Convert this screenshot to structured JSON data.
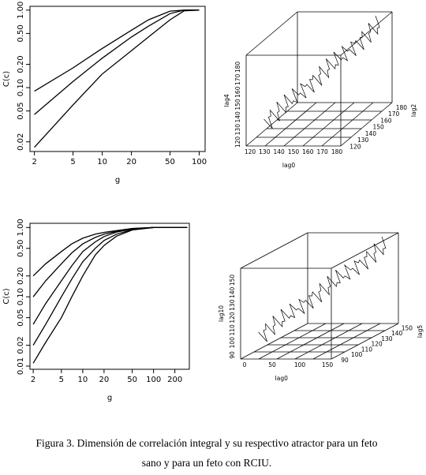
{
  "chart_data": [
    {
      "type": "line",
      "xlabel": "g",
      "ylabel": "C(c)",
      "xscale": "log",
      "yscale": "log",
      "xlim": [
        1.8,
        115
      ],
      "ylim": [
        0.015,
        1.12
      ],
      "xticks": [
        2,
        5,
        10,
        20,
        50,
        100
      ],
      "yticks": [
        0.02,
        0.05,
        {
          "value": 0.1,
          "label": "0.10"
        },
        {
          "value": 0.2,
          "label": "0.20"
        },
        {
          "value": 0.5,
          "label": "0.50"
        },
        {
          "value": 1,
          "label": "1.00"
        }
      ],
      "x": [
        2,
        5,
        10,
        20,
        30,
        50,
        70,
        100
      ],
      "series": [
        {
          "color": "#000000",
          "values": [
            0.09,
            0.18,
            0.32,
            0.55,
            0.75,
            0.97,
            1,
            1
          ]
        },
        {
          "color": "#000000",
          "values": [
            0.045,
            0.12,
            0.24,
            0.45,
            0.62,
            0.9,
            1,
            1
          ]
        },
        {
          "color": "#000000",
          "values": [
            0.017,
            0.06,
            0.15,
            0.3,
            0.45,
            0.75,
            0.98,
            1
          ]
        }
      ]
    },
    {
      "type": "line",
      "xlabel": "g",
      "ylabel": "C(c)",
      "xscale": "log",
      "yscale": "log",
      "xlim": [
        1.8,
        320
      ],
      "ylim": [
        0.009,
        1.15
      ],
      "xticks": [
        2,
        5,
        10,
        20,
        50,
        100,
        200
      ],
      "yticks": [
        0.01,
        0.02,
        0.05,
        {
          "value": 0.1,
          "label": "0.10"
        },
        {
          "value": 0.2,
          "label": "0.20"
        },
        {
          "value": 0.5,
          "label": "0.50"
        },
        {
          "value": 1,
          "label": "1.00"
        }
      ],
      "x": [
        2,
        3,
        5,
        7,
        10,
        15,
        20,
        30,
        50,
        100,
        200,
        300
      ],
      "series": [
        {
          "color": "#000000",
          "values": [
            0.2,
            0.3,
            0.45,
            0.58,
            0.7,
            0.8,
            0.85,
            0.9,
            0.97,
            1,
            1,
            1
          ]
        },
        {
          "color": "#000000",
          "values": [
            0.1,
            0.17,
            0.3,
            0.43,
            0.58,
            0.72,
            0.8,
            0.88,
            0.96,
            1,
            1,
            1
          ]
        },
        {
          "color": "#000000",
          "values": [
            0.04,
            0.08,
            0.17,
            0.28,
            0.45,
            0.62,
            0.74,
            0.86,
            0.95,
            1,
            1,
            1
          ]
        },
        {
          "color": "#000000",
          "values": [
            0.02,
            0.04,
            0.1,
            0.18,
            0.32,
            0.5,
            0.65,
            0.8,
            0.93,
            1,
            1,
            1
          ]
        },
        {
          "color": "#000000",
          "values": [
            0.011,
            0.022,
            0.05,
            0.1,
            0.2,
            0.4,
            0.55,
            0.75,
            0.92,
            1,
            1,
            1
          ]
        }
      ]
    }
  ],
  "attractors": [
    {
      "x": {
        "label": "lag0",
        "ticks": [
          120,
          130,
          140,
          150,
          160,
          170,
          180
        ]
      },
      "depth": {
        "label": "lag2",
        "ticks": [
          120,
          130,
          140,
          150,
          160,
          170,
          180
        ]
      },
      "vertical": {
        "label": "lag4",
        "ticks": [
          120,
          130,
          140,
          150,
          160,
          170,
          180
        ]
      }
    },
    {
      "x": {
        "label": "lag0",
        "ticks": [
          0,
          50,
          100,
          150
        ]
      },
      "depth": {
        "label": "lag5",
        "ticks": [
          90,
          100,
          110,
          120,
          130,
          140,
          150
        ]
      },
      "vertical": {
        "label": "lag10",
        "ticks": [
          90,
          100,
          110,
          120,
          130,
          140,
          150
        ]
      }
    }
  ],
  "caption": [
    "Figura 3.  Dimensión de correlación integral y su respectivo atractor para un feto",
    "sano y para un feto con RCIU."
  ]
}
